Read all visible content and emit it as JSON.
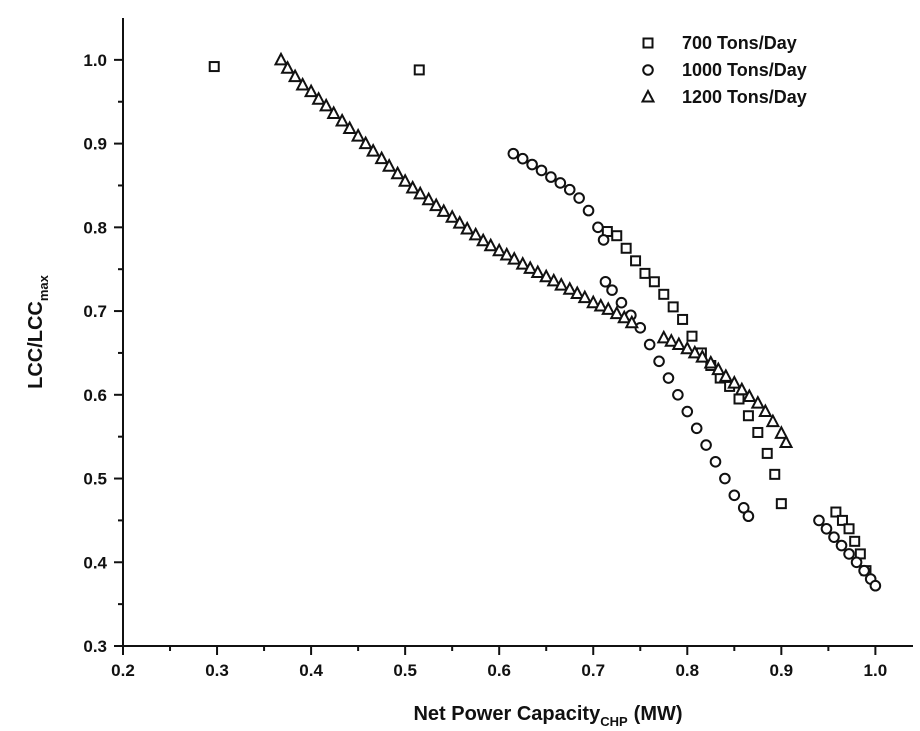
{
  "chart_data": {
    "type": "scatter",
    "xlabel_main": "Net Power Capacity",
    "xlabel_sub": "CHP",
    "xlabel_unit": "(MW)",
    "ylabel_main": "LCC/LCC",
    "ylabel_sub": "max",
    "xlim": [
      0.2,
      1.04
    ],
    "ylim": [
      0.3,
      1.05
    ],
    "xticks": [
      0.2,
      0.3,
      0.4,
      0.5,
      0.6,
      0.7,
      0.8,
      0.9,
      1.0
    ],
    "yticks": [
      0.3,
      0.4,
      0.5,
      0.6,
      0.7,
      0.8,
      0.9,
      1.0
    ],
    "xtick_labels": [
      "0.2",
      "0.3",
      "0.4",
      "0.5",
      "0.6",
      "0.7",
      "0.8",
      "0.9",
      "1.0"
    ],
    "ytick_labels": [
      "0.3",
      "0.4",
      "0.5",
      "0.6",
      "0.7",
      "0.8",
      "0.9",
      "1.0"
    ],
    "legend_position": "top-right",
    "series": [
      {
        "name": "700 Tons/Day",
        "marker": "square",
        "x": [
          0.297,
          0.515,
          0.715,
          0.725,
          0.735,
          0.745,
          0.755,
          0.765,
          0.775,
          0.785,
          0.795,
          0.805,
          0.815,
          0.825,
          0.835,
          0.845,
          0.855,
          0.865,
          0.875,
          0.885,
          0.893,
          0.9,
          0.958,
          0.965,
          0.972,
          0.978,
          0.984,
          0.99
        ],
        "y": [
          0.992,
          0.988,
          0.795,
          0.79,
          0.775,
          0.76,
          0.745,
          0.735,
          0.72,
          0.705,
          0.69,
          0.67,
          0.65,
          0.635,
          0.62,
          0.61,
          0.595,
          0.575,
          0.555,
          0.53,
          0.505,
          0.47,
          0.46,
          0.45,
          0.44,
          0.425,
          0.41,
          0.39
        ]
      },
      {
        "name": "1000 Tons/Day",
        "marker": "circle",
        "x": [
          0.615,
          0.625,
          0.635,
          0.645,
          0.655,
          0.665,
          0.675,
          0.685,
          0.695,
          0.705,
          0.711,
          0.713,
          0.72,
          0.73,
          0.74,
          0.75,
          0.76,
          0.77,
          0.78,
          0.79,
          0.8,
          0.81,
          0.82,
          0.83,
          0.84,
          0.85,
          0.86,
          0.865,
          0.94,
          0.948,
          0.956,
          0.964,
          0.972,
          0.98,
          0.988,
          0.995,
          1.0
        ],
        "y": [
          0.888,
          0.882,
          0.875,
          0.868,
          0.86,
          0.853,
          0.845,
          0.835,
          0.82,
          0.8,
          0.785,
          0.735,
          0.725,
          0.71,
          0.695,
          0.68,
          0.66,
          0.64,
          0.62,
          0.6,
          0.58,
          0.56,
          0.54,
          0.52,
          0.5,
          0.48,
          0.465,
          0.455,
          0.45,
          0.44,
          0.43,
          0.42,
          0.41,
          0.4,
          0.39,
          0.38,
          0.372
        ]
      },
      {
        "name": "1200 Tons/Day",
        "marker": "triangle",
        "x": [
          0.368,
          0.375,
          0.383,
          0.391,
          0.4,
          0.408,
          0.416,
          0.424,
          0.433,
          0.441,
          0.45,
          0.458,
          0.466,
          0.475,
          0.483,
          0.492,
          0.5,
          0.508,
          0.516,
          0.525,
          0.533,
          0.541,
          0.55,
          0.558,
          0.566,
          0.575,
          0.583,
          0.591,
          0.6,
          0.608,
          0.616,
          0.625,
          0.633,
          0.641,
          0.65,
          0.658,
          0.666,
          0.675,
          0.683,
          0.691,
          0.7,
          0.708,
          0.716,
          0.725,
          0.733,
          0.741,
          0.775,
          0.783,
          0.791,
          0.8,
          0.808,
          0.816,
          0.825,
          0.833,
          0.841,
          0.85,
          0.858,
          0.866,
          0.875,
          0.883,
          0.891,
          0.9,
          0.905
        ],
        "y": [
          1.0,
          0.99,
          0.98,
          0.97,
          0.962,
          0.953,
          0.945,
          0.936,
          0.927,
          0.918,
          0.909,
          0.9,
          0.891,
          0.882,
          0.873,
          0.864,
          0.855,
          0.847,
          0.84,
          0.833,
          0.826,
          0.819,
          0.812,
          0.805,
          0.798,
          0.791,
          0.784,
          0.778,
          0.772,
          0.767,
          0.762,
          0.756,
          0.751,
          0.746,
          0.741,
          0.736,
          0.731,
          0.726,
          0.721,
          0.716,
          0.71,
          0.706,
          0.702,
          0.697,
          0.692,
          0.686,
          0.668,
          0.664,
          0.66,
          0.655,
          0.65,
          0.645,
          0.638,
          0.63,
          0.622,
          0.614,
          0.606,
          0.598,
          0.59,
          0.58,
          0.568,
          0.554,
          0.543
        ]
      }
    ]
  }
}
